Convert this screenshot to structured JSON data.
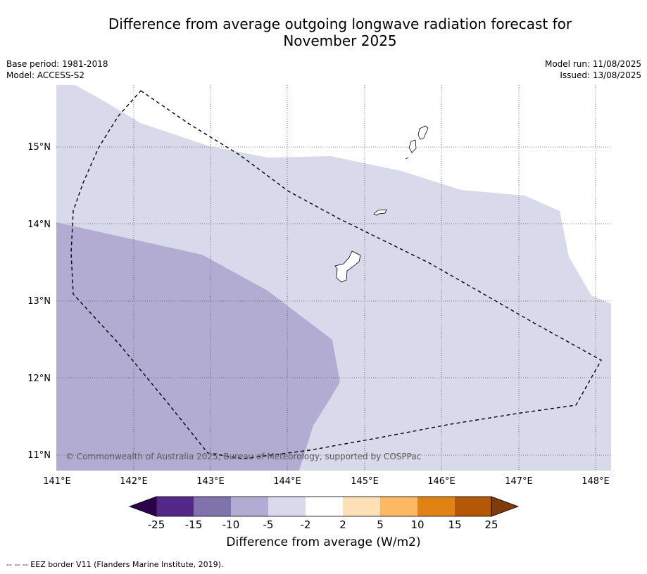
{
  "title_line1": "Difference from average outgoing longwave radiation forecast for",
  "title_line2": "November 2025",
  "base_period": "Base period: 1981-2018",
  "model": "Model: ACCESS-S2",
  "model_run": "Model run: 11/08/2025",
  "issued": "Issued: 13/08/2025",
  "copyright": "© Commonwealth of Australia 2025, Bureau of Meteorology, supported by COSPPac",
  "lon_labels": [
    "141°E",
    "142°E",
    "143°E",
    "144°E",
    "145°E",
    "146°E",
    "147°E",
    "148°E"
  ],
  "lat_labels": [
    "15°N",
    "14°N",
    "13°N",
    "12°N",
    "11°N"
  ],
  "colorbar": {
    "title": "Difference from average (W/m2)",
    "tick_labels": [
      "-25",
      "-15",
      "-10",
      "-5",
      "-2",
      "2",
      "5",
      "10",
      "15",
      "25"
    ],
    "colors": [
      "#2d004b",
      "#542788",
      "#8073ac",
      "#b2abd2",
      "#d8daeb",
      "#ffffff",
      "#fee0b6",
      "#fdb863",
      "#e08214",
      "#b35806",
      "#7f3b08"
    ]
  },
  "footnote": "--  --  -- EEZ border V11 (Flanders Marine Institute, 2019).",
  "map": {
    "extent": {
      "lon": [
        141.0,
        148.2
      ],
      "lat": [
        10.8,
        15.8
      ]
    },
    "categories": [
      {
        "label": "-5 to -2",
        "color": "#d8daeb"
      },
      {
        "label": "-10 to -5",
        "color": "#b2abd2"
      }
    ]
  }
}
